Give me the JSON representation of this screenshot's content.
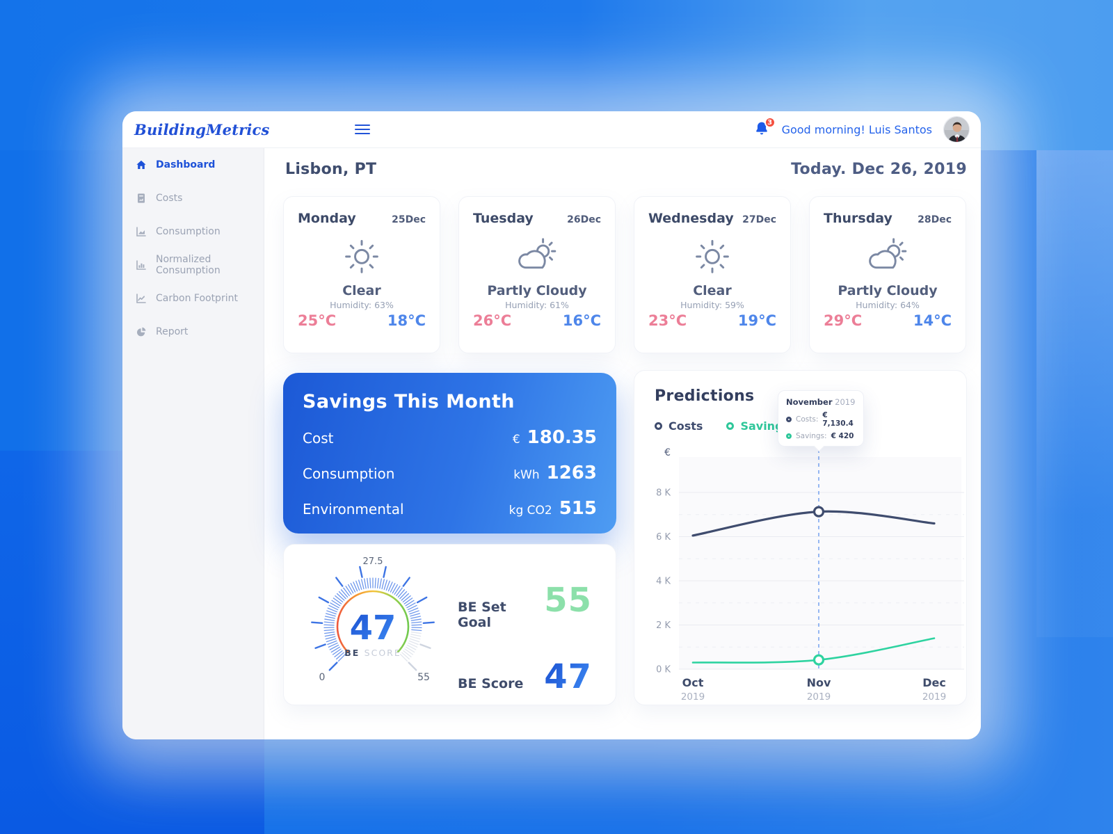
{
  "app": {
    "logo": "BuildingMetrics",
    "notification_count": "3",
    "greeting": "Good morning! Luis Santos"
  },
  "sidebar": {
    "items": [
      {
        "label": "Dashboard",
        "icon": "home-icon",
        "active": true
      },
      {
        "label": "Costs",
        "icon": "costs-icon",
        "active": false
      },
      {
        "label": "Consumption",
        "icon": "consumption-icon",
        "active": false
      },
      {
        "label": "Normalized Consumption",
        "icon": "normalized-consumption-icon",
        "active": false
      },
      {
        "label": "Carbon Footprint",
        "icon": "carbon-footprint-icon",
        "active": false
      },
      {
        "label": "Report",
        "icon": "report-icon",
        "active": false
      }
    ]
  },
  "main": {
    "location": "Lisbon, PT",
    "today": "Today. Dec 26, 2019"
  },
  "weather": {
    "cards": [
      {
        "day": "Monday",
        "date": "25Dec",
        "icon": "sun-icon",
        "condition": "Clear",
        "humidity": "Humidity: 63%",
        "high": "25°C",
        "low": "18°C"
      },
      {
        "day": "Tuesday",
        "date": "26Dec",
        "icon": "partly-cloudy-icon",
        "condition": "Partly Cloudy",
        "humidity": "Humidity: 61%",
        "high": "26°C",
        "low": "16°C"
      },
      {
        "day": "Wednesday",
        "date": "27Dec",
        "icon": "sun-icon",
        "condition": "Clear",
        "humidity": "Humidity: 59%",
        "high": "23°C",
        "low": "19°C"
      },
      {
        "day": "Thursday",
        "date": "28Dec",
        "icon": "partly-cloudy-icon",
        "condition": "Partly Cloudy",
        "humidity": "Humidity: 64%",
        "high": "29°C",
        "low": "14°C"
      }
    ]
  },
  "savings": {
    "title": "Savings This Month",
    "rows": [
      {
        "label": "Cost",
        "unit": "€",
        "value": "180.35"
      },
      {
        "label": "Consumption",
        "unit": "kWh",
        "value": "1263"
      },
      {
        "label": "Environmental",
        "unit": "kg CO2",
        "value": "515"
      }
    ]
  },
  "score": {
    "gauge": {
      "value": 47,
      "min": 0,
      "max": 55,
      "top_label": "27.5",
      "min_label": "0",
      "max_label": "55",
      "center_value": "47",
      "center_caption_bold": "BE",
      "center_caption_light": "SCORE"
    },
    "items": [
      {
        "label": "BE Set Goal",
        "value": "55",
        "color": "#8ce0aa"
      },
      {
        "label": "BE Score",
        "value": "47",
        "color": "#2468e0"
      }
    ]
  },
  "predictions": {
    "title": "Predictions",
    "legend": [
      {
        "label": "Costs",
        "color": "#3f4c6e"
      },
      {
        "label": "Saving",
        "color": "#2fc79a"
      }
    ],
    "tooltip": {
      "month": "November",
      "year": "2019",
      "rows": [
        {
          "label": "Costs:",
          "value": "€ 7,130.4",
          "color": "#3f4c6e"
        },
        {
          "label": "Savings:",
          "value": "€ 420",
          "color": "#2ed3a0"
        }
      ]
    }
  },
  "chart_data": {
    "type": "line",
    "title": "Predictions",
    "ylabel": "€",
    "x": [
      "Oct 2019",
      "Nov 2019",
      "Dec 2019"
    ],
    "x_labels": [
      {
        "month": "Oct",
        "year": "2019"
      },
      {
        "month": "Nov",
        "year": "2019"
      },
      {
        "month": "Dec",
        "year": "2019"
      }
    ],
    "y_ticks": [
      {
        "label": "8 K",
        "value": 8000
      },
      {
        "label": "6 K",
        "value": 6000
      },
      {
        "label": "4 K",
        "value": 4000
      },
      {
        "label": "2 K",
        "value": 2000
      },
      {
        "label": "0 K",
        "value": 0
      }
    ],
    "ylim": [
      0,
      8800
    ],
    "grid": true,
    "legend_position": "top-left",
    "series": [
      {
        "name": "Costs",
        "color": "#3f4c6e",
        "values": [
          6050,
          7130.4,
          6600
        ]
      },
      {
        "name": "Saving",
        "color": "#2ed3a0",
        "values": [
          300,
          420,
          1400
        ]
      }
    ],
    "highlight": {
      "x": "Nov 2019",
      "index": 1,
      "costs": "€ 7,130.4",
      "savings": "€ 420"
    }
  },
  "colors": {
    "brand_blue": "#2150d6",
    "accent_blue": "#2563eb",
    "navy_text": "#3f4c6e",
    "temp_high_pink": "#ec7e97",
    "temp_low_blue": "#4e86ea",
    "saving_green": "#2ed3a0",
    "goal_green": "#8ce0aa",
    "badge_red": "#f4503f",
    "savings_gradient_start": "#1c59d6",
    "savings_gradient_end": "#4e9cf2"
  }
}
